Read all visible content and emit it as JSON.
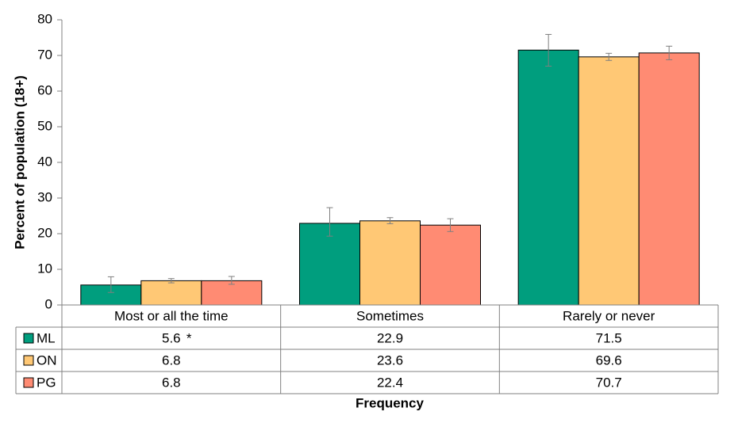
{
  "chart_data": {
    "type": "bar",
    "categories": [
      "Most or all the time",
      "Sometimes",
      "Rarely or never"
    ],
    "series": [
      {
        "name": "ML",
        "color": "#009E7E",
        "values": [
          5.6,
          22.9,
          71.5
        ],
        "labels": [
          "5.6",
          "22.9",
          "71.5"
        ],
        "flags": [
          "*",
          "",
          ""
        ],
        "error_low": [
          3.5,
          19.3,
          67.0
        ],
        "error_high": [
          7.9,
          27.3,
          75.9
        ]
      },
      {
        "name": "ON",
        "color": "#FFC875",
        "values": [
          6.8,
          23.6,
          69.6
        ],
        "labels": [
          "6.8",
          "23.6",
          "69.6"
        ],
        "flags": [
          "",
          "",
          ""
        ],
        "error_low": [
          6.2,
          22.8,
          68.6
        ],
        "error_high": [
          7.4,
          24.5,
          70.6
        ]
      },
      {
        "name": "PG",
        "color": "#FF8B73",
        "values": [
          6.8,
          22.4,
          70.7
        ],
        "labels": [
          "6.8",
          "22.4",
          "70.7"
        ],
        "flags": [
          "",
          "",
          ""
        ],
        "error_low": [
          5.8,
          20.6,
          68.8
        ],
        "error_high": [
          8.0,
          24.2,
          72.6
        ]
      }
    ],
    "xlabel": "Frequency",
    "ylabel": "Percent of population (18+)",
    "ylim": [
      0,
      80
    ],
    "yticks": [
      "0",
      "10",
      "20",
      "30",
      "40",
      "50",
      "60",
      "70",
      "80"
    ],
    "grid": false,
    "legend": "data-table-left"
  }
}
